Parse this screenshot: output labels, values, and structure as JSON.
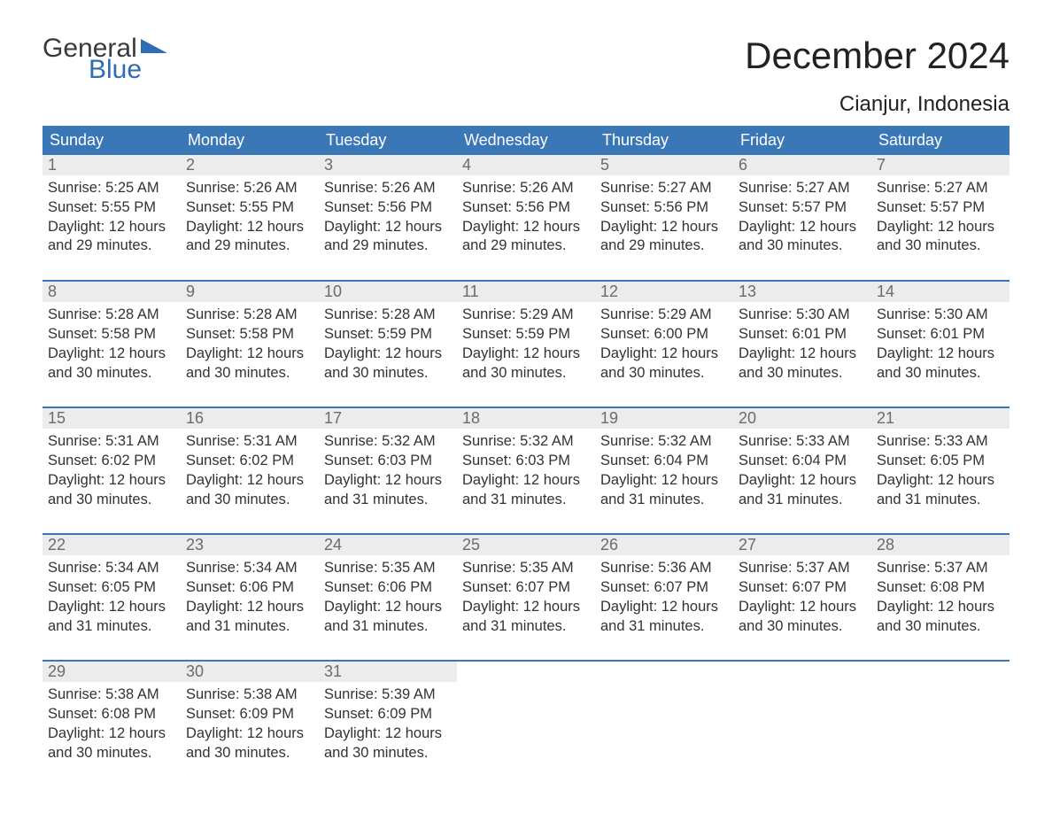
{
  "brand": {
    "line1": "General",
    "line2": "Blue",
    "flag_color": "#2f6db2",
    "text_gray": "#3a3a3a"
  },
  "title": "December 2024",
  "location": "Cianjur, Indonesia",
  "colors": {
    "header_bg": "#3a77b7",
    "header_text": "#ffffff",
    "daynum_bg": "#ececec",
    "daynum_text": "#6b6b6b",
    "body_text": "#333333",
    "rule": "#3a77b7",
    "page_bg": "#ffffff"
  },
  "fonts": {
    "title_size_pt": 32,
    "location_size_pt": 18,
    "header_size_pt": 14,
    "body_size_pt": 12
  },
  "day_headers": [
    "Sunday",
    "Monday",
    "Tuesday",
    "Wednesday",
    "Thursday",
    "Friday",
    "Saturday"
  ],
  "weeks": [
    [
      {
        "n": "1",
        "sr": "Sunrise: 5:25 AM",
        "ss": "Sunset: 5:55 PM",
        "d1": "Daylight: 12 hours",
        "d2": "and 29 minutes."
      },
      {
        "n": "2",
        "sr": "Sunrise: 5:26 AM",
        "ss": "Sunset: 5:55 PM",
        "d1": "Daylight: 12 hours",
        "d2": "and 29 minutes."
      },
      {
        "n": "3",
        "sr": "Sunrise: 5:26 AM",
        "ss": "Sunset: 5:56 PM",
        "d1": "Daylight: 12 hours",
        "d2": "and 29 minutes."
      },
      {
        "n": "4",
        "sr": "Sunrise: 5:26 AM",
        "ss": "Sunset: 5:56 PM",
        "d1": "Daylight: 12 hours",
        "d2": "and 29 minutes."
      },
      {
        "n": "5",
        "sr": "Sunrise: 5:27 AM",
        "ss": "Sunset: 5:56 PM",
        "d1": "Daylight: 12 hours",
        "d2": "and 29 minutes."
      },
      {
        "n": "6",
        "sr": "Sunrise: 5:27 AM",
        "ss": "Sunset: 5:57 PM",
        "d1": "Daylight: 12 hours",
        "d2": "and 30 minutes."
      },
      {
        "n": "7",
        "sr": "Sunrise: 5:27 AM",
        "ss": "Sunset: 5:57 PM",
        "d1": "Daylight: 12 hours",
        "d2": "and 30 minutes."
      }
    ],
    [
      {
        "n": "8",
        "sr": "Sunrise: 5:28 AM",
        "ss": "Sunset: 5:58 PM",
        "d1": "Daylight: 12 hours",
        "d2": "and 30 minutes."
      },
      {
        "n": "9",
        "sr": "Sunrise: 5:28 AM",
        "ss": "Sunset: 5:58 PM",
        "d1": "Daylight: 12 hours",
        "d2": "and 30 minutes."
      },
      {
        "n": "10",
        "sr": "Sunrise: 5:28 AM",
        "ss": "Sunset: 5:59 PM",
        "d1": "Daylight: 12 hours",
        "d2": "and 30 minutes."
      },
      {
        "n": "11",
        "sr": "Sunrise: 5:29 AM",
        "ss": "Sunset: 5:59 PM",
        "d1": "Daylight: 12 hours",
        "d2": "and 30 minutes."
      },
      {
        "n": "12",
        "sr": "Sunrise: 5:29 AM",
        "ss": "Sunset: 6:00 PM",
        "d1": "Daylight: 12 hours",
        "d2": "and 30 minutes."
      },
      {
        "n": "13",
        "sr": "Sunrise: 5:30 AM",
        "ss": "Sunset: 6:01 PM",
        "d1": "Daylight: 12 hours",
        "d2": "and 30 minutes."
      },
      {
        "n": "14",
        "sr": "Sunrise: 5:30 AM",
        "ss": "Sunset: 6:01 PM",
        "d1": "Daylight: 12 hours",
        "d2": "and 30 minutes."
      }
    ],
    [
      {
        "n": "15",
        "sr": "Sunrise: 5:31 AM",
        "ss": "Sunset: 6:02 PM",
        "d1": "Daylight: 12 hours",
        "d2": "and 30 minutes."
      },
      {
        "n": "16",
        "sr": "Sunrise: 5:31 AM",
        "ss": "Sunset: 6:02 PM",
        "d1": "Daylight: 12 hours",
        "d2": "and 30 minutes."
      },
      {
        "n": "17",
        "sr": "Sunrise: 5:32 AM",
        "ss": "Sunset: 6:03 PM",
        "d1": "Daylight: 12 hours",
        "d2": "and 31 minutes."
      },
      {
        "n": "18",
        "sr": "Sunrise: 5:32 AM",
        "ss": "Sunset: 6:03 PM",
        "d1": "Daylight: 12 hours",
        "d2": "and 31 minutes."
      },
      {
        "n": "19",
        "sr": "Sunrise: 5:32 AM",
        "ss": "Sunset: 6:04 PM",
        "d1": "Daylight: 12 hours",
        "d2": "and 31 minutes."
      },
      {
        "n": "20",
        "sr": "Sunrise: 5:33 AM",
        "ss": "Sunset: 6:04 PM",
        "d1": "Daylight: 12 hours",
        "d2": "and 31 minutes."
      },
      {
        "n": "21",
        "sr": "Sunrise: 5:33 AM",
        "ss": "Sunset: 6:05 PM",
        "d1": "Daylight: 12 hours",
        "d2": "and 31 minutes."
      }
    ],
    [
      {
        "n": "22",
        "sr": "Sunrise: 5:34 AM",
        "ss": "Sunset: 6:05 PM",
        "d1": "Daylight: 12 hours",
        "d2": "and 31 minutes."
      },
      {
        "n": "23",
        "sr": "Sunrise: 5:34 AM",
        "ss": "Sunset: 6:06 PM",
        "d1": "Daylight: 12 hours",
        "d2": "and 31 minutes."
      },
      {
        "n": "24",
        "sr": "Sunrise: 5:35 AM",
        "ss": "Sunset: 6:06 PM",
        "d1": "Daylight: 12 hours",
        "d2": "and 31 minutes."
      },
      {
        "n": "25",
        "sr": "Sunrise: 5:35 AM",
        "ss": "Sunset: 6:07 PM",
        "d1": "Daylight: 12 hours",
        "d2": "and 31 minutes."
      },
      {
        "n": "26",
        "sr": "Sunrise: 5:36 AM",
        "ss": "Sunset: 6:07 PM",
        "d1": "Daylight: 12 hours",
        "d2": "and 31 minutes."
      },
      {
        "n": "27",
        "sr": "Sunrise: 5:37 AM",
        "ss": "Sunset: 6:07 PM",
        "d1": "Daylight: 12 hours",
        "d2": "and 30 minutes."
      },
      {
        "n": "28",
        "sr": "Sunrise: 5:37 AM",
        "ss": "Sunset: 6:08 PM",
        "d1": "Daylight: 12 hours",
        "d2": "and 30 minutes."
      }
    ],
    [
      {
        "n": "29",
        "sr": "Sunrise: 5:38 AM",
        "ss": "Sunset: 6:08 PM",
        "d1": "Daylight: 12 hours",
        "d2": "and 30 minutes."
      },
      {
        "n": "30",
        "sr": "Sunrise: 5:38 AM",
        "ss": "Sunset: 6:09 PM",
        "d1": "Daylight: 12 hours",
        "d2": "and 30 minutes."
      },
      {
        "n": "31",
        "sr": "Sunrise: 5:39 AM",
        "ss": "Sunset: 6:09 PM",
        "d1": "Daylight: 12 hours",
        "d2": "and 30 minutes."
      },
      null,
      null,
      null,
      null
    ]
  ]
}
